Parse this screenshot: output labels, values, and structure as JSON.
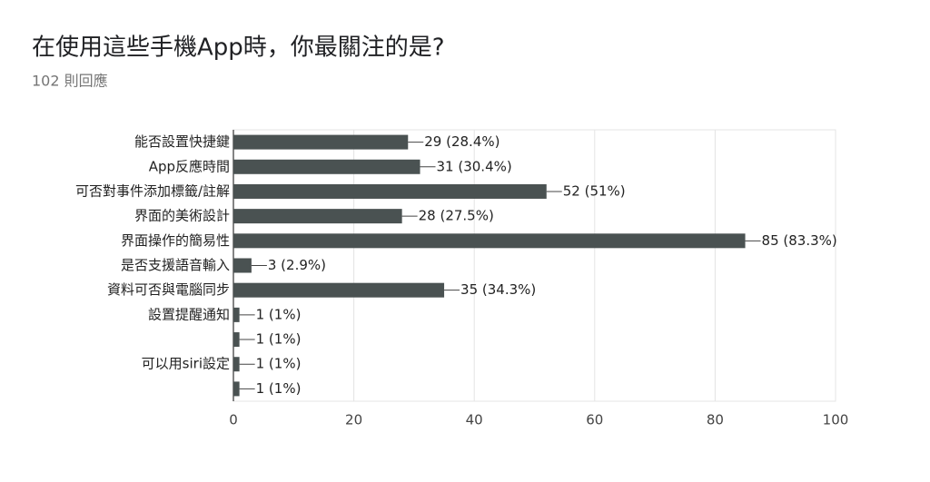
{
  "chart_data": {
    "type": "bar",
    "orientation": "horizontal",
    "title": "在使用這些手機App時，你最關注的是?",
    "subtitle": "102 則回應",
    "categories": [
      "能否設置快捷鍵",
      "App反應時間",
      "可否對事件添加標籤/註解",
      "界面的美術設計",
      "界面操作的簡易性",
      "是否支援語音輸入",
      "資料可否與電腦同步",
      "設置提醒通知",
      null,
      "可以用siri設定",
      null
    ],
    "values": [
      29,
      31,
      52,
      28,
      85,
      3,
      35,
      1,
      1,
      1,
      1
    ],
    "value_labels": [
      "29 (28.4%)",
      "31 (30.4%)",
      "52 (51%)",
      "28 (27.5%)",
      "85 (83.3%)",
      "3 (2.9%)",
      "35 (34.3%)",
      "1 (1%)",
      "1 (1%)",
      "1 (1%)",
      "1 (1%)"
    ],
    "color": "#4a5252",
    "xlim": [
      0,
      100
    ],
    "xticks": [
      0,
      20,
      40,
      60,
      80,
      100
    ],
    "grid": true
  }
}
